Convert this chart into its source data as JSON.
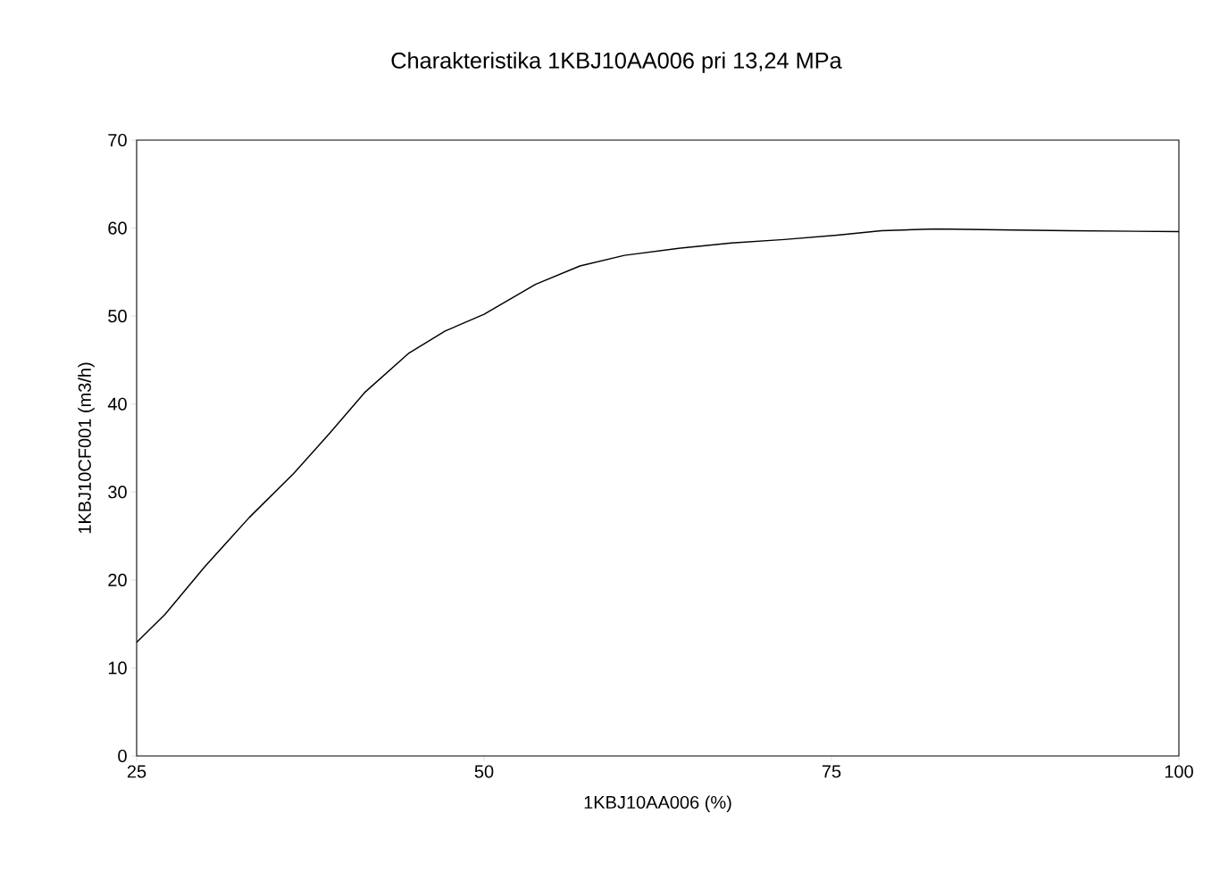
{
  "chart_data": {
    "type": "line",
    "title": "Charakteristika 1KBJ10AA006 pri 13,24 MPa",
    "xlabel": "1KBJ10AA006  (%)",
    "ylabel": "1KBJ10CF001  (m3/h)",
    "x": [
      25,
      27.05,
      29.9,
      33.1,
      36.3,
      38.9,
      41.4,
      44.6,
      47.2,
      50,
      53.7,
      56.9,
      60.1,
      64,
      67.8,
      71.6,
      75.4,
      78.6,
      82.5,
      87,
      92.1,
      100
    ],
    "values": [
      12.9,
      16.1,
      21.5,
      27.1,
      32.1,
      36.7,
      41.3,
      45.8,
      48.3,
      50.2,
      53.6,
      55.7,
      56.9,
      57.7,
      58.3,
      58.7,
      59.2,
      59.7,
      59.9,
      59.8,
      59.7,
      59.6
    ],
    "color": "#000000",
    "xlim": [
      25,
      100
    ],
    "ylim": [
      0,
      70
    ],
    "xticks": [
      25,
      50,
      75,
      100
    ],
    "yticks": [
      0,
      10,
      20,
      30,
      40,
      50,
      60,
      70
    ],
    "grid": false,
    "marker": "none",
    "line_style": "solid"
  }
}
